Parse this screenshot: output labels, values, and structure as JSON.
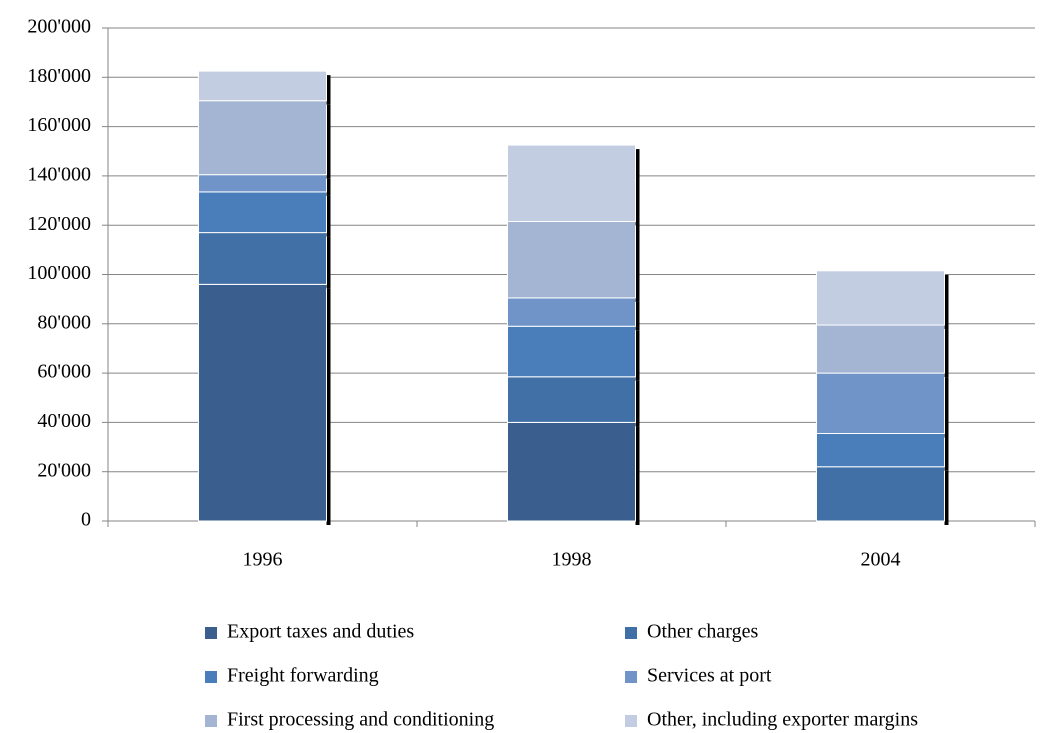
{
  "chart_data": {
    "type": "stacked_bar",
    "categories": [
      "1996",
      "1998",
      "2004"
    ],
    "series": [
      {
        "name": "Export taxes and duties",
        "color": "#3a5f8f",
        "values": [
          96000,
          40000,
          0
        ]
      },
      {
        "name": "Other charges",
        "color": "#4170a6",
        "values": [
          21000,
          18500,
          22000
        ]
      },
      {
        "name": "Freight forwarding",
        "color": "#4a7ebb",
        "values": [
          16500,
          20500,
          13500
        ]
      },
      {
        "name": "Services at port",
        "color": "#7094c8",
        "values": [
          7000,
          11500,
          24500
        ]
      },
      {
        "name": "First processing and conditioning",
        "color": "#a3b5d3",
        "values": [
          30000,
          31000,
          19500
        ]
      },
      {
        "name": "Other, including exporter margins",
        "color": "#c2cde2",
        "values": [
          12000,
          31000,
          22000
        ]
      }
    ],
    "ylim": [
      0,
      200000
    ],
    "yticks": [
      0,
      {
        "value": 20000,
        "label": "20'000"
      },
      {
        "value": 40000,
        "label": "40'000"
      },
      {
        "value": 60000,
        "label": "60'000"
      },
      {
        "value": 80000,
        "label": "80'000"
      },
      {
        "value": 100000,
        "label": "100'000"
      },
      {
        "value": 120000,
        "label": "120'000"
      },
      {
        "value": 140000,
        "label": "140'000"
      },
      {
        "value": 160000,
        "label": "160'000"
      },
      {
        "value": 180000,
        "label": "180'000"
      },
      {
        "value": 200000,
        "label": "200'000"
      }
    ],
    "grid": true,
    "legend": "bottom"
  }
}
